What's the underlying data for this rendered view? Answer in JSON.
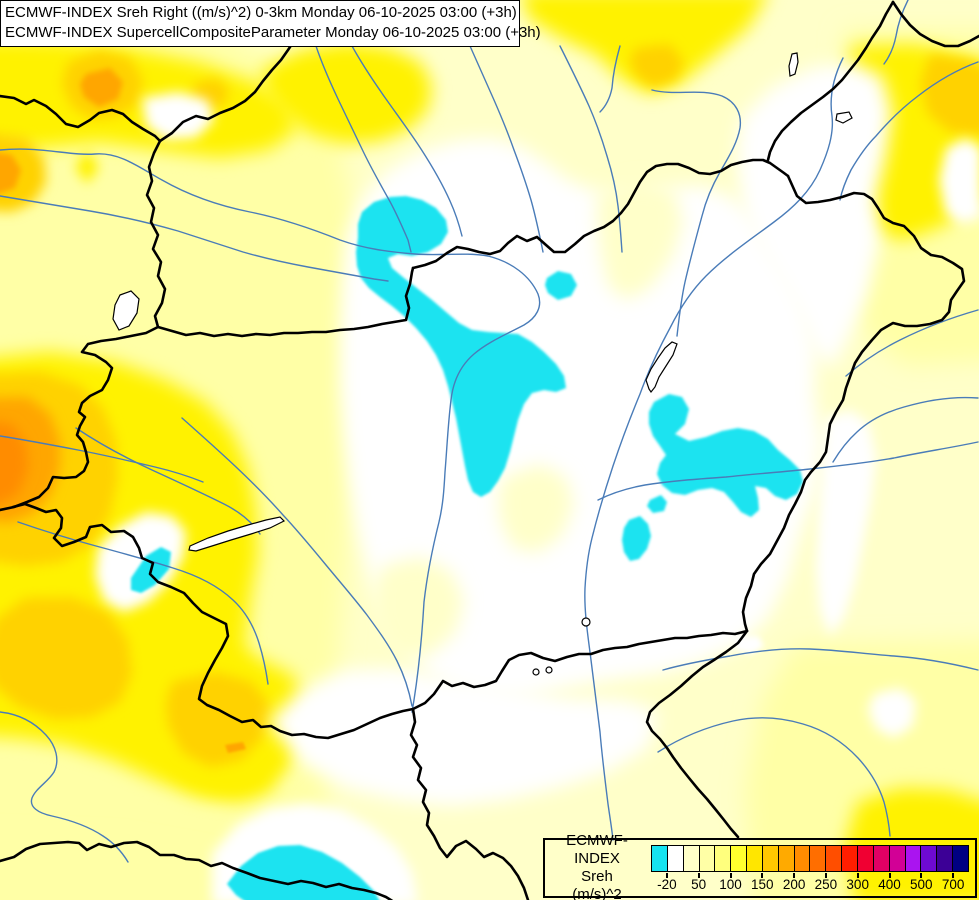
{
  "title_box": {
    "line1": "ECMWF-INDEX Sreh Right ((m/s)^2) 0-3km Monday 06-10-2025 03:00 (+3h)",
    "line2": "ECMWF-INDEX SupercellCompositeParameter Monday 06-10-2025 03:00 (+3h)"
  },
  "legend": {
    "product": "ECMWF-INDEX",
    "parameter": "Sreh",
    "units": "(m/s)^2",
    "tick_labels": [
      "-20",
      "50",
      "100",
      "150",
      "200",
      "250",
      "300",
      "400",
      "500",
      "700"
    ],
    "tick_boundaries": [
      1,
      3,
      5,
      7,
      9,
      11,
      13,
      15,
      17,
      19
    ],
    "swatch_colors": [
      "#16E3F0",
      "#FFFFFF",
      "#FFFFC8",
      "#FFFFA6",
      "#FFFF7D",
      "#FFFF2E",
      "#FFE600",
      "#FFC800",
      "#FFAA00",
      "#FF8C00",
      "#FF6E00",
      "#FF4E00",
      "#FF1E00",
      "#F00032",
      "#E10064",
      "#D20096",
      "#AA14F0",
      "#6E0AD2",
      "#3C0096",
      "#000082"
    ]
  },
  "map": {
    "palette": {
      "base": "#FFFFC9",
      "light_yellow": "#FFFFA6",
      "yellow": "#FFF200",
      "gold": "#FFD200",
      "orange": "#FFA600",
      "deep_orange": "#FF8C00",
      "white": "#FFFFFF",
      "cyan": "#1FE3F0",
      "river": "#4A7CB8",
      "border": "#000000",
      "lake_fill": "#FFFFFF",
      "lake_outline": "#000000"
    }
  }
}
